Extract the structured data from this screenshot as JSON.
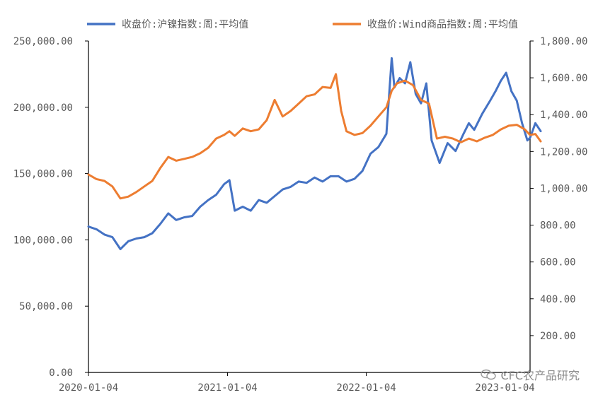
{
  "chart_data": {
    "type": "line",
    "legend": {
      "placement": "top"
    },
    "grid": false,
    "x_ticks": [
      "2020-01-04",
      "2021-01-04",
      "2022-01-04",
      "2023-01-04"
    ],
    "x_range": [
      "2020-01-04",
      "2023-03-11"
    ],
    "y_left": {
      "range": [
        0,
        250000
      ],
      "ticks": [
        "0.00",
        "50,000.00",
        "100,000.00",
        "150,000.00",
        "200,000.00",
        "250,000.00"
      ]
    },
    "y_right": {
      "range": [
        0,
        1800
      ],
      "ticks": [
        "200.00",
        "400.00",
        "600.00",
        "800.00",
        "1,000.00",
        "1,200.00",
        "1,400.00",
        "1,600.00",
        "1,800.00"
      ]
    },
    "series": [
      {
        "name": "收盘价:沪镍指数:周:平均值",
        "color": "#4472C4",
        "axis": "left",
        "points": [
          [
            "2020-01-04",
            110000
          ],
          [
            "2020-01-25",
            108000
          ],
          [
            "2020-02-15",
            104000
          ],
          [
            "2020-03-07",
            102000
          ],
          [
            "2020-03-28",
            93000
          ],
          [
            "2020-04-18",
            99000
          ],
          [
            "2020-05-09",
            101000
          ],
          [
            "2020-05-30",
            102000
          ],
          [
            "2020-06-20",
            105000
          ],
          [
            "2020-07-11",
            112000
          ],
          [
            "2020-08-01",
            120000
          ],
          [
            "2020-08-22",
            115000
          ],
          [
            "2020-09-12",
            117000
          ],
          [
            "2020-10-03",
            118000
          ],
          [
            "2020-10-24",
            125000
          ],
          [
            "2020-11-14",
            130000
          ],
          [
            "2020-12-05",
            134000
          ],
          [
            "2020-12-26",
            142000
          ],
          [
            "2021-01-09",
            145000
          ],
          [
            "2021-01-23",
            122000
          ],
          [
            "2021-02-13",
            125000
          ],
          [
            "2021-03-06",
            122000
          ],
          [
            "2021-03-27",
            130000
          ],
          [
            "2021-04-17",
            128000
          ],
          [
            "2021-05-08",
            133000
          ],
          [
            "2021-05-29",
            138000
          ],
          [
            "2021-06-19",
            140000
          ],
          [
            "2021-07-10",
            144000
          ],
          [
            "2021-07-31",
            143000
          ],
          [
            "2021-08-21",
            147000
          ],
          [
            "2021-09-11",
            144000
          ],
          [
            "2021-10-02",
            148000
          ],
          [
            "2021-10-23",
            148000
          ],
          [
            "2021-11-13",
            144000
          ],
          [
            "2021-12-04",
            146000
          ],
          [
            "2021-12-25",
            152000
          ],
          [
            "2022-01-15",
            165000
          ],
          [
            "2022-02-05",
            170000
          ],
          [
            "2022-02-26",
            180000
          ],
          [
            "2022-03-12",
            237000
          ],
          [
            "2022-03-19",
            215000
          ],
          [
            "2022-04-02",
            222000
          ],
          [
            "2022-04-16",
            218000
          ],
          [
            "2022-04-30",
            234000
          ],
          [
            "2022-05-14",
            210000
          ],
          [
            "2022-05-28",
            203000
          ],
          [
            "2022-06-11",
            218000
          ],
          [
            "2022-06-25",
            175000
          ],
          [
            "2022-07-16",
            158000
          ],
          [
            "2022-08-06",
            173000
          ],
          [
            "2022-08-27",
            167000
          ],
          [
            "2022-09-17",
            180000
          ],
          [
            "2022-10-01",
            188000
          ],
          [
            "2022-10-15",
            183000
          ],
          [
            "2022-11-05",
            195000
          ],
          [
            "2022-11-26",
            205000
          ],
          [
            "2022-12-10",
            212000
          ],
          [
            "2022-12-24",
            220000
          ],
          [
            "2023-01-07",
            226000
          ],
          [
            "2023-01-21",
            212000
          ],
          [
            "2023-02-04",
            205000
          ],
          [
            "2023-02-18",
            188000
          ],
          [
            "2023-03-04",
            175000
          ],
          [
            "2023-03-11",
            177000
          ],
          [
            "2023-03-25",
            188000
          ],
          [
            "2023-04-08",
            182000
          ]
        ]
      },
      {
        "name": "收盘价:Wind商品指数:周:平均值",
        "color": "#ED7D31",
        "axis": "right",
        "points": [
          [
            "2020-01-04",
            1075
          ],
          [
            "2020-01-25",
            1050
          ],
          [
            "2020-02-15",
            1040
          ],
          [
            "2020-03-07",
            1010
          ],
          [
            "2020-03-28",
            945
          ],
          [
            "2020-04-18",
            955
          ],
          [
            "2020-05-09",
            980
          ],
          [
            "2020-05-30",
            1010
          ],
          [
            "2020-06-20",
            1040
          ],
          [
            "2020-07-11",
            1110
          ],
          [
            "2020-08-01",
            1170
          ],
          [
            "2020-08-22",
            1150
          ],
          [
            "2020-09-12",
            1160
          ],
          [
            "2020-10-03",
            1170
          ],
          [
            "2020-10-24",
            1190
          ],
          [
            "2020-11-14",
            1220
          ],
          [
            "2020-12-05",
            1270
          ],
          [
            "2020-12-26",
            1290
          ],
          [
            "2021-01-09",
            1310
          ],
          [
            "2021-01-23",
            1285
          ],
          [
            "2021-02-13",
            1325
          ],
          [
            "2021-03-06",
            1310
          ],
          [
            "2021-03-27",
            1320
          ],
          [
            "2021-04-17",
            1370
          ],
          [
            "2021-05-08",
            1480
          ],
          [
            "2021-05-29",
            1390
          ],
          [
            "2021-06-19",
            1420
          ],
          [
            "2021-07-10",
            1460
          ],
          [
            "2021-07-31",
            1500
          ],
          [
            "2021-08-21",
            1510
          ],
          [
            "2021-09-11",
            1550
          ],
          [
            "2021-10-02",
            1545
          ],
          [
            "2021-10-16",
            1620
          ],
          [
            "2021-10-30",
            1420
          ],
          [
            "2021-11-13",
            1310
          ],
          [
            "2021-12-04",
            1290
          ],
          [
            "2021-12-25",
            1300
          ],
          [
            "2022-01-15",
            1340
          ],
          [
            "2022-02-05",
            1390
          ],
          [
            "2022-02-26",
            1440
          ],
          [
            "2022-03-12",
            1530
          ],
          [
            "2022-03-26",
            1570
          ],
          [
            "2022-04-16",
            1585
          ],
          [
            "2022-05-07",
            1560
          ],
          [
            "2022-05-28",
            1480
          ],
          [
            "2022-06-18",
            1460
          ],
          [
            "2022-07-09",
            1270
          ],
          [
            "2022-07-30",
            1280
          ],
          [
            "2022-08-20",
            1270
          ],
          [
            "2022-09-10",
            1250
          ],
          [
            "2022-10-01",
            1270
          ],
          [
            "2022-10-22",
            1255
          ],
          [
            "2022-11-12",
            1275
          ],
          [
            "2022-12-03",
            1290
          ],
          [
            "2022-12-24",
            1320
          ],
          [
            "2023-01-14",
            1340
          ],
          [
            "2023-02-04",
            1345
          ],
          [
            "2023-02-25",
            1320
          ],
          [
            "2023-03-11",
            1290
          ],
          [
            "2023-03-25",
            1295
          ],
          [
            "2023-04-08",
            1255
          ]
        ]
      }
    ]
  },
  "watermark": {
    "text": "CFC农产品研究"
  }
}
